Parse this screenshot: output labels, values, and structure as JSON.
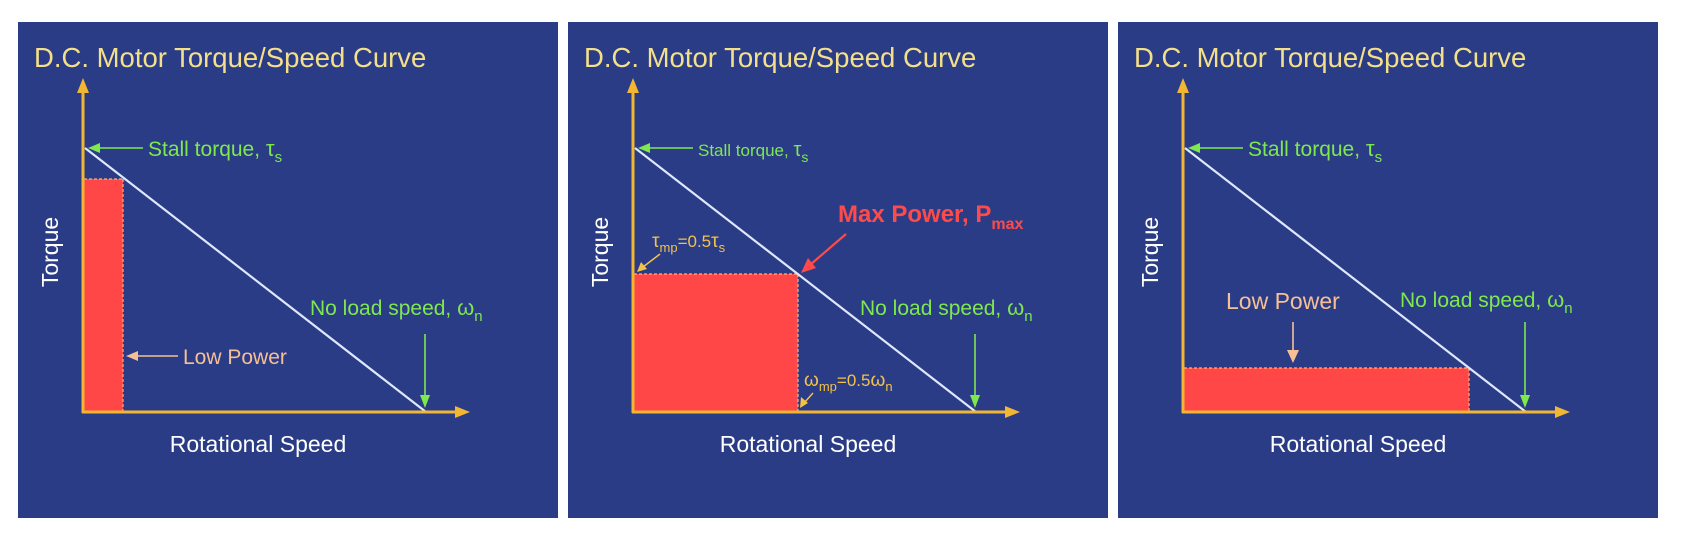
{
  "colors": {
    "panel_bg": "#2b3c86",
    "title": "#f4e08a",
    "axis": "#f2b632",
    "curve": "#dfe8ff",
    "power_area": "#ff4747",
    "label_green": "#7ee84f",
    "label_orange": "#f6c094",
    "label_red": "#ff4a4a"
  },
  "panels": [
    {
      "title": "D.C. Motor Torque/Speed Curve",
      "ylabel": "Torque",
      "xlabel": "Rotational Speed",
      "stall": {
        "text": "Stall torque, ",
        "sym": "τ",
        "sub": "s"
      },
      "noload": {
        "text": "No load speed, ",
        "sym": "ω",
        "sub": "n"
      },
      "power_label": "Low Power"
    },
    {
      "title": "D.C. Motor Torque/Speed Curve",
      "ylabel": "Torque",
      "xlabel": "Rotational Speed",
      "stall": {
        "text": "Stall torque, ",
        "sym": "τ",
        "sub": "s"
      },
      "noload": {
        "text": "No load speed, ",
        "sym": "ω",
        "sub": "n"
      },
      "max_power": {
        "text": "Max Power, P",
        "sub": "max"
      },
      "tau_mp": {
        "sym": "τ",
        "sub": "mp",
        "eq": "=0.5",
        "sym2": "τ",
        "sub2": "s"
      },
      "omega_mp": {
        "sym": "ω",
        "sub": "mp",
        "eq": "=0.5",
        "sym2": "ω",
        "sub2": "n"
      }
    },
    {
      "title": "D.C. Motor Torque/Speed Curve",
      "ylabel": "Torque",
      "xlabel": "Rotational Speed",
      "stall": {
        "text": "Stall torque, ",
        "sym": "τ",
        "sub": "s"
      },
      "noload": {
        "text": "No load speed, ",
        "sym": "ω",
        "sub": "n"
      },
      "power_label": "Low Power"
    }
  ]
}
